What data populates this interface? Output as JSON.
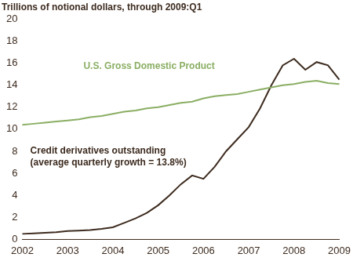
{
  "chart_data": {
    "type": "line",
    "title": "Trillions of notional dollars, through 2009:Q1",
    "categories": [
      "2002",
      null,
      null,
      null,
      "2003",
      null,
      null,
      null,
      "2004",
      null,
      null,
      null,
      "2005",
      null,
      null,
      null,
      "2006",
      null,
      null,
      null,
      "2007",
      null,
      null,
      null,
      "2008",
      null,
      null,
      null,
      "2009"
    ],
    "series": [
      {
        "name": "U.S. Gross Domestic Product",
        "color": "#8aae63",
        "values": [
          10.4,
          10.5,
          10.6,
          10.7,
          10.8,
          10.9,
          11.1,
          11.2,
          11.4,
          11.6,
          11.7,
          11.9,
          12.0,
          12.2,
          12.4,
          12.5,
          12.8,
          13.0,
          13.1,
          13.2,
          13.4,
          13.6,
          13.8,
          14.0,
          14.1,
          14.3,
          14.4,
          14.2,
          14.1
        ]
      },
      {
        "name": "Credit derivatives outstanding (average quarterly growth = 13.8%)",
        "color": "#3d2b1f",
        "values": [
          0.5,
          0.55,
          0.6,
          0.65,
          0.75,
          0.8,
          0.85,
          0.95,
          1.1,
          1.5,
          1.9,
          2.4,
          3.1,
          4.0,
          5.0,
          5.8,
          5.5,
          6.6,
          8.0,
          9.1,
          10.2,
          11.9,
          14.0,
          15.8,
          16.4,
          15.4,
          16.1,
          15.8,
          14.5
        ]
      }
    ],
    "ylim": [
      0,
      20
    ],
    "yticks": [
      0,
      2,
      4,
      6,
      8,
      10,
      12,
      14,
      16,
      18,
      20
    ],
    "grid": false
  }
}
